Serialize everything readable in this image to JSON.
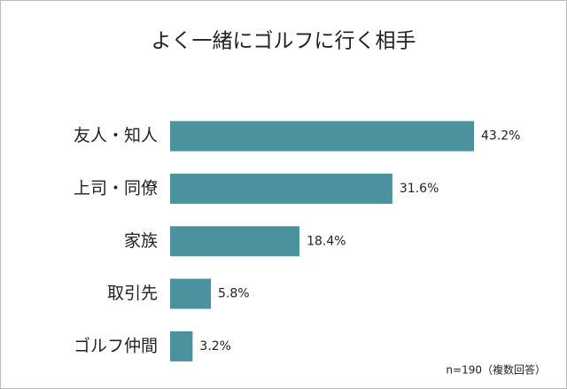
{
  "chart_data": {
    "type": "barh",
    "title": "よく一緒にゴルフに行く相手",
    "categories": [
      "友人・知人",
      "上司・同僚",
      "家族",
      "取引先",
      "ゴルフ仲間"
    ],
    "values": [
      43.2,
      31.6,
      18.4,
      5.8,
      3.2
    ],
    "value_labels": [
      "43.2%",
      "31.6%",
      "18.4%",
      "5.8%",
      "3.2%"
    ],
    "color": "#4b919e",
    "note": "n=190（複数回答）"
  }
}
